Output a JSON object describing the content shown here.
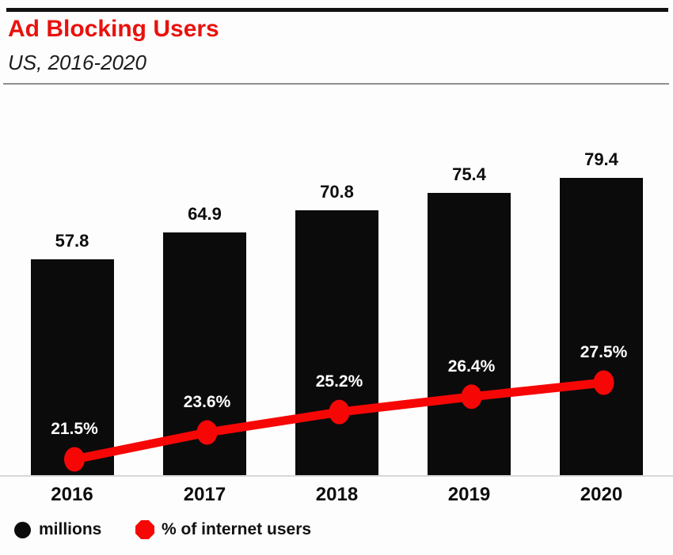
{
  "header": {
    "title": "Ad Blocking Users",
    "subtitle": "US, 2016-2020"
  },
  "chart_data": {
    "type": "bar",
    "title": "Ad Blocking Users",
    "subtitle": "US, 2016-2020",
    "categories": [
      "2016",
      "2017",
      "2018",
      "2019",
      "2020"
    ],
    "series": [
      {
        "name": "millions",
        "type": "bar",
        "color": "#0b0b0b",
        "values": [
          57.8,
          64.9,
          70.8,
          75.4,
          79.4
        ],
        "labels": [
          "57.8",
          "64.9",
          "70.8",
          "75.4",
          "79.4"
        ]
      },
      {
        "name": "% of internet users",
        "type": "line",
        "color": "#f70606",
        "values": [
          21.5,
          23.6,
          25.2,
          26.4,
          27.5
        ],
        "labels": [
          "21.5%",
          "23.6%",
          "25.2%",
          "26.4%",
          "27.5%"
        ]
      }
    ],
    "xlabel": "",
    "ylabel": "",
    "grid": false,
    "axes_hidden": true,
    "legend_position": "bottom-left"
  },
  "legend": {
    "items": [
      {
        "label": "millions",
        "marker": "circle",
        "color": "#0b0b0b"
      },
      {
        "label": "% of internet users",
        "marker": "octagon",
        "color": "#f70606"
      }
    ]
  },
  "colors": {
    "title_red": "#e8120e",
    "line_red": "#f70606",
    "bar_black": "#0b0b0b",
    "background": "#fdfdfd"
  }
}
